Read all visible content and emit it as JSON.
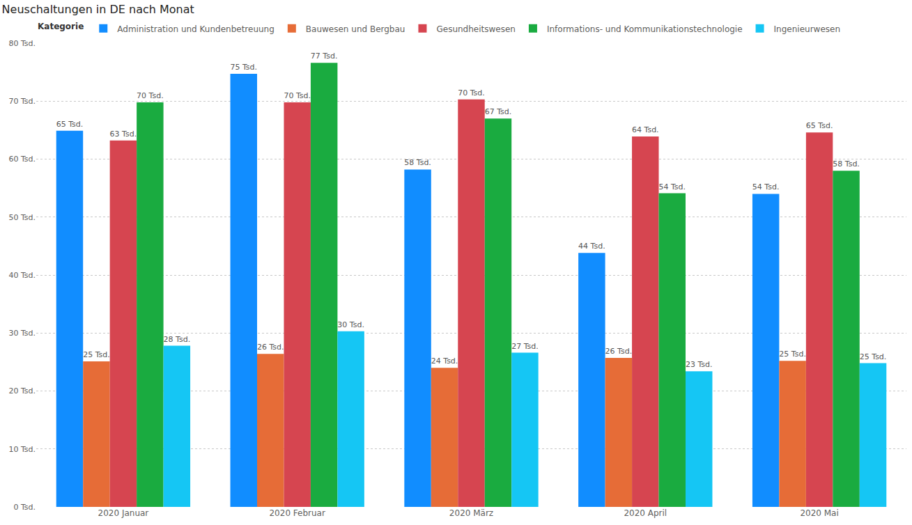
{
  "chart_data": {
    "type": "bar",
    "title": "Neuschaltungen in DE nach Monat",
    "legend_title": "Kategorie",
    "categories": [
      "2020 Januar",
      "2020 Februar",
      "2020 März",
      "2020 April",
      "2020 Mai"
    ],
    "series": [
      {
        "name": "Administration und Kundenbetreuung",
        "color": "#118DFF",
        "values": [
          64900,
          74700,
          58200,
          43800,
          54000
        ],
        "value_labels": [
          "65 Tsd.",
          "75 Tsd.",
          "58 Tsd.",
          "44 Tsd.",
          "54 Tsd."
        ]
      },
      {
        "name": "Bauwesen und Bergbau",
        "color": "#E66C37",
        "values": [
          25100,
          26400,
          24000,
          25700,
          25200
        ],
        "value_labels": [
          "25 Tsd.",
          "26 Tsd.",
          "24 Tsd.",
          "26 Tsd.",
          "25 Tsd."
        ]
      },
      {
        "name": "Gesundheitswesen",
        "color": "#D64550",
        "values": [
          63200,
          69800,
          70300,
          63900,
          64600
        ],
        "value_labels": [
          "63 Tsd.",
          "70 Tsd.",
          "70 Tsd.",
          "64 Tsd.",
          "65 Tsd."
        ]
      },
      {
        "name": "Informations- und Kommunikationstechnologie",
        "color": "#1AAB40",
        "values": [
          69800,
          76600,
          67000,
          54100,
          58000
        ],
        "value_labels": [
          "70 Tsd.",
          "77 Tsd.",
          "67 Tsd.",
          "54 Tsd.",
          "58 Tsd."
        ]
      },
      {
        "name": "Ingenieurwesen",
        "color": "#15C6F4",
        "values": [
          27800,
          30300,
          26600,
          23400,
          24800
        ],
        "value_labels": [
          "28 Tsd.",
          "30 Tsd.",
          "27 Tsd.",
          "23 Tsd.",
          "25 Tsd."
        ]
      }
    ],
    "ylim": [
      0,
      80000
    ],
    "yticks": [
      {
        "value": 0,
        "label": "0 Tsd."
      },
      {
        "value": 10000,
        "label": "10 Tsd."
      },
      {
        "value": 20000,
        "label": "20 Tsd."
      },
      {
        "value": 30000,
        "label": "30 Tsd."
      },
      {
        "value": 40000,
        "label": "40 Tsd."
      },
      {
        "value": 50000,
        "label": "50 Tsd."
      },
      {
        "value": 60000,
        "label": "60 Tsd."
      },
      {
        "value": 70000,
        "label": "70 Tsd."
      },
      {
        "value": 80000,
        "label": "80 Tsd."
      }
    ],
    "grid": true,
    "legend": "top-left",
    "data_labels": true
  }
}
